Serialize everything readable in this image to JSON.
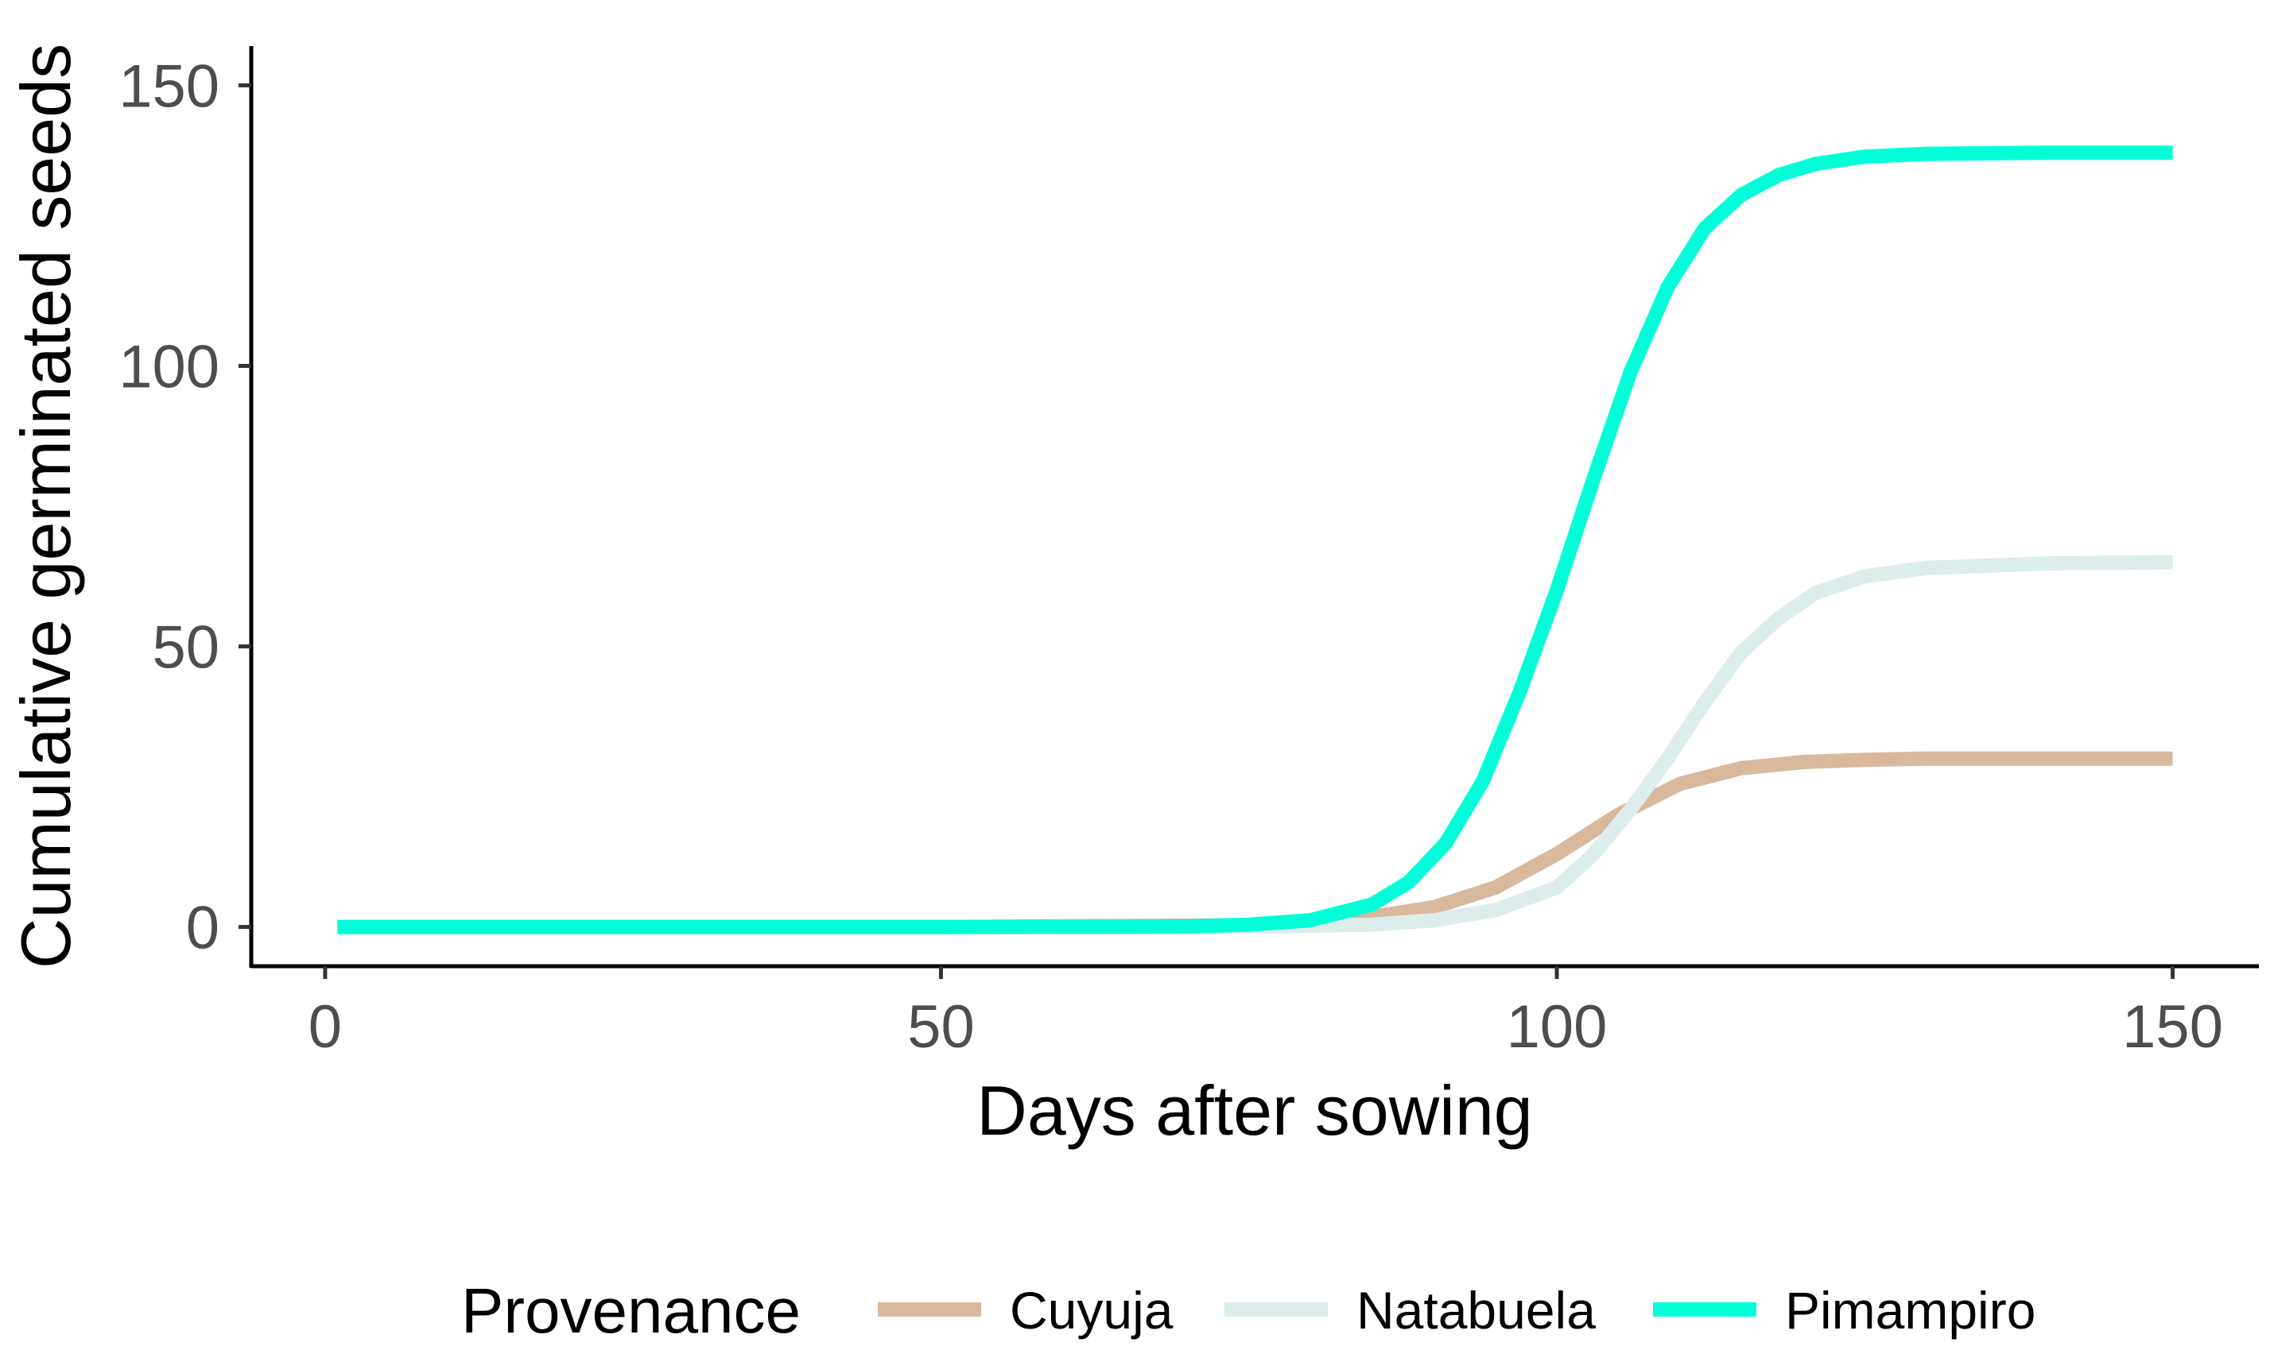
{
  "chart_data": {
    "type": "line",
    "title": "",
    "xlabel": "Days after sowing",
    "ylabel": "Cumulative germinated seeds",
    "xlim": [
      -6,
      157
    ],
    "ylim": [
      -7,
      157
    ],
    "xticks": [
      0,
      50,
      100,
      150
    ],
    "yticks": [
      0,
      50,
      100,
      150
    ],
    "grid": false,
    "legend": {
      "title": "Provenance",
      "position": "bottom"
    },
    "series": [
      {
        "name": "Cuyuja",
        "color": "#D9B89C",
        "x": [
          1,
          50,
          75,
          80,
          85,
          90,
          95,
          100,
          105,
          110,
          115,
          120,
          125,
          130,
          140,
          150
        ],
        "y": [
          0,
          0,
          0.3,
          0.8,
          1.8,
          3.5,
          7,
          13,
          20,
          25.5,
          28.3,
          29.4,
          29.8,
          30,
          30,
          30
        ]
      },
      {
        "name": "Natabuela",
        "color": "#DCEDEB",
        "x": [
          1,
          50,
          75,
          85,
          90,
          95,
          100,
          103,
          106,
          109,
          112,
          115,
          118,
          121,
          125,
          130,
          140,
          150
        ],
        "y": [
          0,
          0,
          0.05,
          0.4,
          1.2,
          3,
          7,
          13,
          21,
          30,
          40,
          49,
          55,
          59.5,
          62.5,
          64,
          64.8,
          65
        ]
      },
      {
        "name": "Pimampiro",
        "color": "#00FFD9",
        "x": [
          1,
          50,
          70,
          75,
          80,
          85,
          88,
          91,
          94,
          97,
          100,
          103,
          106,
          109,
          112,
          115,
          118,
          121,
          125,
          130,
          140,
          150
        ],
        "y": [
          0,
          0,
          0.1,
          0.4,
          1.2,
          4,
          8,
          15,
          26,
          42,
          60,
          80,
          99,
          114,
          124.5,
          130.5,
          134,
          136,
          137.3,
          137.8,
          138,
          138
        ]
      }
    ]
  }
}
